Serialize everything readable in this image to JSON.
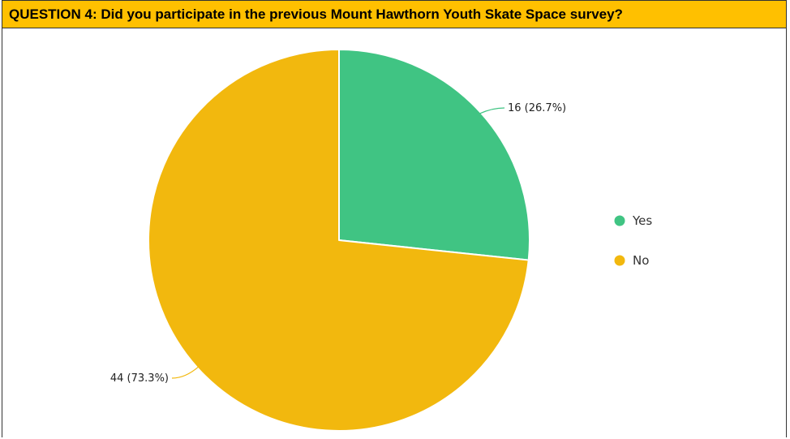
{
  "header": {
    "title": "QUESTION 4: Did you participate in the previous Mount Hawthorn Youth Skate Space survey?"
  },
  "colors": {
    "header_bg": "#ffc000",
    "yes": "#40c483",
    "no": "#f2b80e"
  },
  "chart_data": {
    "type": "pie",
    "title": "QUESTION 4: Did you participate in the previous Mount Hawthorn Youth Skate Space survey?",
    "categories": [
      "Yes",
      "No"
    ],
    "values": [
      16,
      44
    ],
    "percentages": [
      26.7,
      73.3
    ],
    "data_labels": [
      "16 (26.7%)",
      "44 (73.3%)"
    ],
    "colors": [
      "#40c483",
      "#f2b80e"
    ],
    "start": "12 o'clock, clockwise",
    "legend": {
      "position": "right",
      "entries": [
        "Yes",
        "No"
      ]
    }
  }
}
